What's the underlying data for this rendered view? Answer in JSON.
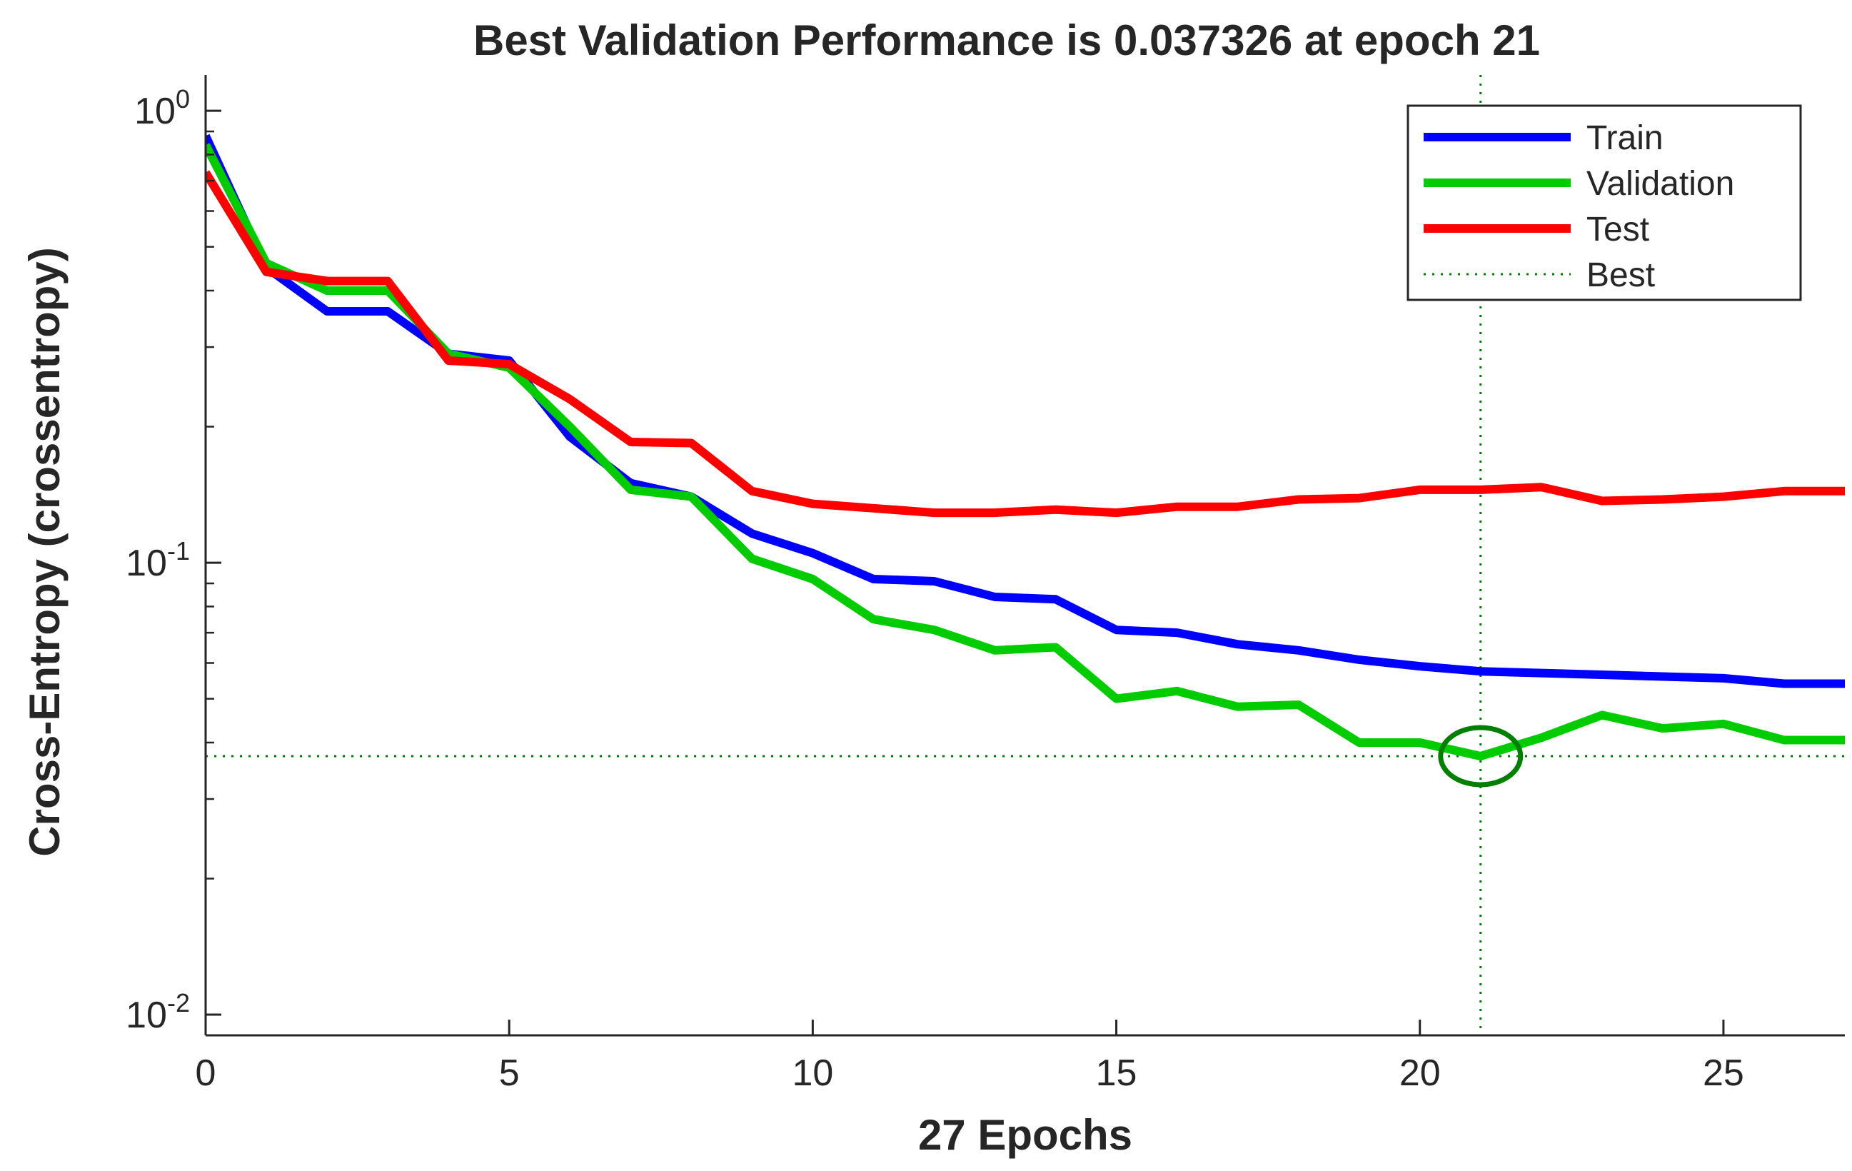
{
  "chart_data": {
    "type": "line",
    "title": "Best Validation Performance is 0.037326 at epoch 21",
    "xlabel": "27 Epochs",
    "ylabel": "Cross-Entropy  (crossentropy)",
    "yscale": "log",
    "xlim": [
      0,
      27
    ],
    "ylim": [
      0.009,
      1.2
    ],
    "grid": false,
    "x_ticks": [
      0,
      5,
      10,
      15,
      20,
      25
    ],
    "y_ticks": [
      {
        "value": 1,
        "base": "10",
        "exp": "0"
      },
      {
        "value": 0.1,
        "base": "10",
        "exp": "-1"
      },
      {
        "value": 0.01,
        "base": "10",
        "exp": "-2"
      }
    ],
    "x": [
      0,
      1,
      2,
      3,
      4,
      5,
      6,
      7,
      8,
      9,
      10,
      11,
      12,
      13,
      14,
      15,
      16,
      17,
      18,
      19,
      20,
      21,
      22,
      23,
      24,
      25,
      26,
      27
    ],
    "series": [
      {
        "name": "Train",
        "color": "#0000ff",
        "values": [
          0.88,
          0.45,
          0.36,
          0.36,
          0.29,
          0.28,
          0.19,
          0.15,
          0.14,
          0.116,
          0.105,
          0.092,
          0.091,
          0.084,
          0.083,
          0.071,
          0.07,
          0.066,
          0.064,
          0.061,
          0.059,
          0.0575,
          0.057,
          0.0565,
          0.056,
          0.0555,
          0.054,
          0.054
        ]
      },
      {
        "name": "Validation",
        "color": "#00cc00",
        "values": [
          0.84,
          0.46,
          0.4,
          0.4,
          0.29,
          0.27,
          0.2,
          0.145,
          0.14,
          0.102,
          0.092,
          0.075,
          0.071,
          0.064,
          0.065,
          0.05,
          0.052,
          0.048,
          0.0485,
          0.04,
          0.04,
          0.037326,
          0.041,
          0.046,
          0.043,
          0.044,
          0.0405,
          0.0405
        ]
      },
      {
        "name": "Test",
        "color": "#ff0000",
        "values": [
          0.73,
          0.44,
          0.42,
          0.42,
          0.28,
          0.275,
          0.23,
          0.185,
          0.184,
          0.144,
          0.135,
          0.132,
          0.129,
          0.129,
          0.131,
          0.129,
          0.133,
          0.133,
          0.138,
          0.139,
          0.145,
          0.145,
          0.147,
          0.137,
          0.138,
          0.14,
          0.144,
          0.144
        ]
      }
    ],
    "best": {
      "label": "Best",
      "epoch": 21,
      "value": 0.037326,
      "color": "#008000"
    },
    "legend": {
      "position": "top-right",
      "entries": [
        "Train",
        "Validation",
        "Test",
        "Best"
      ]
    }
  }
}
